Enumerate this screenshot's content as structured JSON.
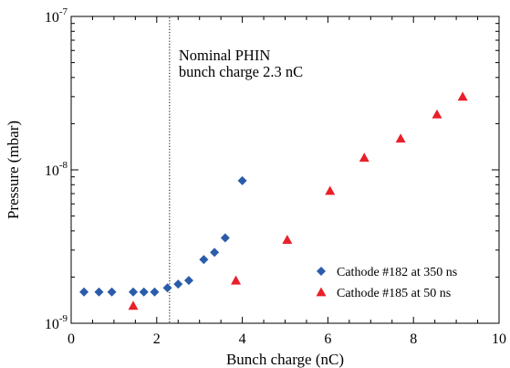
{
  "chart_data": {
    "type": "scatter",
    "title": "",
    "xlabel": "Bunch charge (nC)",
    "ylabel": "Pressure (mbar)",
    "xlim": [
      0,
      10
    ],
    "ylim": [
      1e-09,
      1e-07
    ],
    "yscale": "log",
    "grid": false,
    "legend_position": "bottom-right",
    "x_ticks": [
      {
        "value": 0,
        "label": "0"
      },
      {
        "value": 2,
        "label": "2"
      },
      {
        "value": 4,
        "label": "4"
      },
      {
        "value": 6,
        "label": "6"
      },
      {
        "value": 8,
        "label": "8"
      },
      {
        "value": 10,
        "label": "10"
      }
    ],
    "y_ticks": [
      {
        "value": 1e-09,
        "base": "10",
        "exp": "-9"
      },
      {
        "value": 1e-08,
        "base": "10",
        "exp": "-8"
      },
      {
        "value": 1e-07,
        "base": "10",
        "exp": "-7"
      }
    ],
    "annotations": [
      {
        "text_line1": "Nominal PHIN",
        "text_line2": "bunch charge 2.3 nC",
        "x": 2.3
      }
    ],
    "series": [
      {
        "name": "Cathode #182 at 350 ns",
        "marker": "diamond",
        "color": "#2a5caa",
        "x": [
          0.3,
          0.65,
          0.95,
          1.45,
          1.7,
          1.95,
          2.25,
          2.5,
          2.75,
          3.1,
          3.35,
          3.6,
          4.0
        ],
        "y": [
          1.6e-09,
          1.6e-09,
          1.6e-09,
          1.6e-09,
          1.6e-09,
          1.6e-09,
          1.7e-09,
          1.8e-09,
          1.9e-09,
          2.6e-09,
          2.9e-09,
          3.6e-09,
          8.5e-09
        ]
      },
      {
        "name": "Cathode #185 at 50 ns",
        "marker": "triangle",
        "color": "#e8202a",
        "x": [
          1.45,
          3.85,
          5.05,
          6.05,
          6.85,
          7.7,
          8.55,
          9.15
        ],
        "y": [
          1.3e-09,
          1.9e-09,
          3.5e-09,
          7.3e-09,
          1.2e-08,
          1.6e-08,
          2.3e-08,
          3e-08
        ]
      }
    ]
  }
}
